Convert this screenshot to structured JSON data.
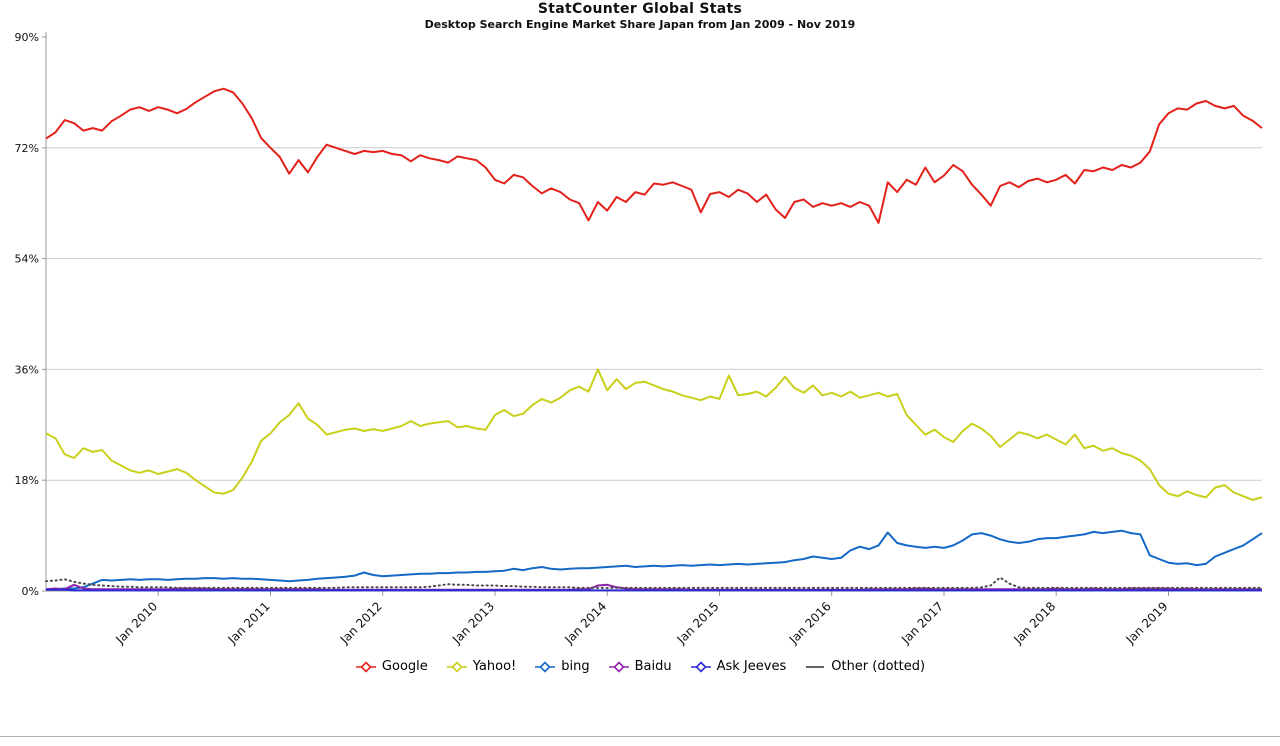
{
  "header": {
    "title": "StatCounter Global Stats",
    "subtitle": "Desktop Search Engine Market Share Japan from Jan 2009 - Nov 2019"
  },
  "style_colors": {
    "grid": "#cccccc",
    "axis": "#999999",
    "tick_text": "#111111",
    "divider": "#b3b3b3"
  },
  "chart_data": {
    "type": "line",
    "title": "StatCounter Global Stats",
    "subtitle": "Desktop Search Engine Market Share Japan from Jan 2009 - Nov 2019",
    "x_unit": "month",
    "x_start": "Jan 2009",
    "x_end": "Nov 2019",
    "n_points": 131,
    "ylim": [
      0,
      90
    ],
    "y_ticks": [
      0,
      18,
      36,
      54,
      72,
      90
    ],
    "y_tick_labels": [
      "0%",
      "18%",
      "36%",
      "54%",
      "72%",
      "90%"
    ],
    "x_tick_indices": [
      12,
      24,
      36,
      48,
      60,
      72,
      84,
      96,
      108,
      120
    ],
    "x_tick_labels": [
      "Jan 2010",
      "Jan 2011",
      "Jan 2012",
      "Jan 2013",
      "Jan 2014",
      "Jan 2015",
      "Jan 2016",
      "Jan 2017",
      "Jan 2018",
      "Jan 2019"
    ],
    "grid": "horizontal",
    "legend_position": "bottom",
    "series": [
      {
        "name": "Google",
        "color": "#e3211b",
        "style": "solid",
        "values": [
          73.5,
          74.5,
          76.5,
          76,
          74.8,
          75.2,
          74.8,
          76.3,
          77.2,
          78.2,
          78.6,
          78,
          78.6,
          78.2,
          77.6,
          78.3,
          79.4,
          80.3,
          81.2,
          81.6,
          81,
          79.2,
          76.8,
          73.6,
          72,
          70.5,
          67.8,
          70,
          68,
          70.5,
          72.5,
          72,
          71.5,
          71,
          71.5,
          71.3,
          71.5,
          71,
          70.8,
          69.8,
          70.8,
          70.3,
          70,
          69.6,
          70.6,
          70.3,
          70,
          68.8,
          66.8,
          66.2,
          67.6,
          67.2,
          65.8,
          64.6,
          65.4,
          64.8,
          63.6,
          63,
          60.2,
          63.2,
          61.8,
          64,
          63.2,
          64.8,
          64.4,
          66.2,
          66,
          66.4,
          65.8,
          65.2,
          61.5,
          64.5,
          64.8,
          64,
          65.2,
          64.6,
          63.2,
          64.4,
          62,
          60.6,
          63.2,
          63.6,
          62.4,
          63,
          62.6,
          63,
          62.4,
          63.2,
          62.6,
          59.8,
          66.4,
          64.8,
          66.8,
          66,
          68.8,
          66.4,
          67.5,
          69.2,
          68.2,
          66,
          64.4,
          62.6,
          65.8,
          66.4,
          65.6,
          66.6,
          67,
          66.4,
          66.8,
          67.6,
          66.2,
          68.4,
          68.2,
          68.8,
          68.4,
          69.2,
          68.8,
          69.6,
          71.4,
          75.8,
          77.6,
          78.4,
          78.2,
          79.2,
          79.6,
          78.8,
          78.4,
          78.8,
          77.2,
          76.4,
          75.2
        ]
      },
      {
        "name": "Yahoo!",
        "color": "#c9cf1b",
        "style": "solid",
        "values": [
          25.6,
          24.8,
          22.2,
          21.6,
          23.2,
          22.6,
          22.9,
          21.2,
          20.4,
          19.6,
          19.2,
          19.6,
          19,
          19.4,
          19.8,
          19.2,
          18,
          17,
          16,
          15.8,
          16.4,
          18.4,
          21,
          24.4,
          25.6,
          27.4,
          28.6,
          30.5,
          28,
          27,
          25.4,
          25.8,
          26.2,
          26.4,
          26,
          26.3,
          26,
          26.4,
          26.8,
          27.6,
          26.8,
          27.2,
          27.4,
          27.6,
          26.6,
          26.8,
          26.4,
          26.2,
          28.6,
          29.4,
          28.4,
          28.8,
          30.2,
          31.2,
          30.6,
          31.4,
          32.6,
          33.2,
          32.4,
          36,
          32.6,
          34.4,
          32.8,
          33.8,
          34,
          33.4,
          32.8,
          32.4,
          31.8,
          31.4,
          31,
          31.6,
          31.2,
          35,
          31.8,
          32,
          32.4,
          31.6,
          33,
          34.8,
          33,
          32.2,
          33.4,
          31.8,
          32.2,
          31.6,
          32.4,
          31.4,
          31.8,
          32.2,
          31.6,
          32,
          28.6,
          27,
          25.4,
          26.2,
          25,
          24.2,
          26,
          27.2,
          26.4,
          25.2,
          23.4,
          24.6,
          25.8,
          25.4,
          24.8,
          25.4,
          24.6,
          23.8,
          25.4,
          23.2,
          23.6,
          22.8,
          23.2,
          22.4,
          22,
          21.2,
          19.8,
          17.2,
          15.8,
          15.4,
          16.2,
          15.6,
          15.2,
          16.8,
          17.2,
          16,
          15.4,
          14.8,
          15.2
        ]
      },
      {
        "name": "bing",
        "color": "#1569c7",
        "style": "solid",
        "values": [
          0.3,
          0.3,
          0.4,
          0.4,
          0.6,
          1.2,
          1.8,
          1.7,
          1.8,
          1.9,
          1.8,
          1.9,
          1.9,
          1.8,
          1.9,
          2,
          2,
          2.1,
          2.1,
          2,
          2.1,
          2,
          2,
          1.9,
          1.8,
          1.7,
          1.6,
          1.7,
          1.8,
          2,
          2.1,
          2.2,
          2.3,
          2.5,
          3,
          2.6,
          2.4,
          2.5,
          2.6,
          2.7,
          2.8,
          2.8,
          2.9,
          2.9,
          3,
          3,
          3.1,
          3.1,
          3.2,
          3.3,
          3.6,
          3.4,
          3.7,
          3.9,
          3.6,
          3.5,
          3.6,
          3.7,
          3.7,
          3.8,
          3.9,
          4,
          4.1,
          3.9,
          4,
          4.1,
          4,
          4.1,
          4.2,
          4.1,
          4.2,
          4.3,
          4.2,
          4.3,
          4.4,
          4.3,
          4.4,
          4.5,
          4.6,
          4.7,
          5,
          5.2,
          5.6,
          5.4,
          5.2,
          5.4,
          6.6,
          7.2,
          6.8,
          7.4,
          9.5,
          7.8,
          7.4,
          7.2,
          7,
          7.2,
          7,
          7.4,
          8.2,
          9.2,
          9.4,
          9,
          8.4,
          8,
          7.8,
          8,
          8.4,
          8.6,
          8.6,
          8.8,
          9,
          9.2,
          9.6,
          9.4,
          9.6,
          9.8,
          9.4,
          9.2,
          5.8,
          5.2,
          4.6,
          4.4,
          4.5,
          4.2,
          4.4,
          5.6,
          6.2,
          6.8,
          7.4,
          8.4,
          9.4
        ]
      },
      {
        "name": "Baidu",
        "color": "#9022a8",
        "style": "solid",
        "values": [
          0.3,
          0.4,
          0.3,
          1,
          0.4,
          0.3,
          0.3,
          0.3,
          0.3,
          0.3,
          0.3,
          0.3,
          0.3,
          0.3,
          0.4,
          0.4,
          0.4,
          0.4,
          0.3,
          0.3,
          0.3,
          0.3,
          0.3,
          0.3,
          0.3,
          0.3,
          0.3,
          0.3,
          0.3,
          0.3,
          0.2,
          0.2,
          0.2,
          0.2,
          0.2,
          0.2,
          0.2,
          0.2,
          0.2,
          0.2,
          0.2,
          0.2,
          0.2,
          0.2,
          0.2,
          0.2,
          0.2,
          0.2,
          0.2,
          0.2,
          0.2,
          0.2,
          0.2,
          0.2,
          0.2,
          0.2,
          0.2,
          0.3,
          0.3,
          0.9,
          1,
          0.6,
          0.4,
          0.3,
          0.3,
          0.3,
          0.3,
          0.3,
          0.3,
          0.2,
          0.2,
          0.2,
          0.2,
          0.2,
          0.2,
          0.2,
          0.2,
          0.2,
          0.2,
          0.2,
          0.2,
          0.2,
          0.2,
          0.2,
          0.2,
          0.2,
          0.2,
          0.2,
          0.3,
          0.3,
          0.3,
          0.3,
          0.3,
          0.4,
          0.4,
          0.3,
          0.3,
          0.3,
          0.3,
          0.3,
          0.3,
          0.3,
          0.3,
          0.3,
          0.3,
          0.3,
          0.3,
          0.3,
          0.4,
          0.3,
          0.3,
          0.3,
          0.4,
          0.3,
          0.3,
          0.3,
          0.4,
          0.4,
          0.4,
          0.4,
          0.4,
          0.3,
          0.4,
          0.3,
          0.3,
          0.3,
          0.3,
          0.3,
          0.3,
          0.3,
          0.3
        ]
      },
      {
        "name": "Ask Jeeves",
        "color": "#2a2ad4",
        "style": "solid",
        "values": [
          0.2,
          0.2,
          0.2,
          0.1,
          0.1,
          0.1,
          0.1,
          0.1,
          0.1,
          0.1,
          0.1,
          0.1,
          0.1,
          0.1,
          0.1,
          0.1,
          0.1,
          0.1,
          0.1,
          0.1,
          0.1,
          0.1,
          0.1,
          0.1,
          0.1,
          0.1,
          0.1,
          0.1,
          0.1,
          0.1,
          0.1,
          0.1,
          0.1,
          0.1,
          0.1,
          0.1,
          0.1,
          0.1,
          0.1,
          0.1,
          0.1,
          0.1,
          0.1,
          0.1,
          0.1,
          0.1,
          0.1,
          0.1,
          0.1,
          0.1,
          0.1,
          0.1,
          0.1,
          0.1,
          0.1,
          0.1,
          0.1,
          0.1,
          0.1,
          0.1,
          0.1,
          0.1,
          0.1,
          0.1,
          0.1,
          0.1,
          0.1,
          0.1,
          0.1,
          0.1,
          0.1,
          0.1,
          0.1,
          0.1,
          0.1,
          0.1,
          0.1,
          0.1,
          0.1,
          0.1,
          0.1,
          0.1,
          0.1,
          0.1,
          0.1,
          0.1,
          0.1,
          0.1,
          0.1,
          0.1,
          0.1,
          0.1,
          0.1,
          0.1,
          0.1,
          0.1,
          0.1,
          0.1,
          0.1,
          0.1,
          0.1,
          0.1,
          0.1,
          0.1,
          0.1,
          0.1,
          0.1,
          0.1,
          0.1,
          0.1,
          0.1,
          0.1,
          0.1,
          0.1,
          0.1,
          0.1,
          0.1,
          0.1,
          0.1,
          0.1,
          0.1,
          0.1,
          0.1,
          0.1,
          0.1,
          0.1,
          0.1,
          0.1,
          0.1,
          0.1,
          0.1
        ]
      },
      {
        "name": "Other (dotted)",
        "color": "#4d4d4d",
        "style": "dotted",
        "values": [
          1.6,
          1.7,
          1.9,
          1.5,
          1.2,
          1,
          0.9,
          0.8,
          0.7,
          0.7,
          0.6,
          0.6,
          0.6,
          0.6,
          0.5,
          0.5,
          0.5,
          0.5,
          0.5,
          0.5,
          0.5,
          0.5,
          0.5,
          0.5,
          0.5,
          0.5,
          0.5,
          0.5,
          0.5,
          0.5,
          0.5,
          0.5,
          0.6,
          0.6,
          0.6,
          0.6,
          0.6,
          0.6,
          0.6,
          0.6,
          0.6,
          0.7,
          0.9,
          1.1,
          1,
          1,
          0.9,
          0.9,
          0.9,
          0.8,
          0.8,
          0.7,
          0.7,
          0.6,
          0.6,
          0.6,
          0.6,
          0.5,
          0.5,
          0.5,
          0.5,
          0.5,
          0.5,
          0.5,
          0.5,
          0.5,
          0.5,
          0.5,
          0.5,
          0.5,
          0.5,
          0.5,
          0.5,
          0.5,
          0.5,
          0.5,
          0.5,
          0.5,
          0.5,
          0.5,
          0.5,
          0.5,
          0.5,
          0.5,
          0.5,
          0.5,
          0.5,
          0.5,
          0.5,
          0.5,
          0.5,
          0.5,
          0.5,
          0.5,
          0.5,
          0.5,
          0.5,
          0.5,
          0.5,
          0.5,
          0.6,
          0.9,
          2.2,
          1.2,
          0.6,
          0.5,
          0.5,
          0.5,
          0.5,
          0.5,
          0.5,
          0.5,
          0.5,
          0.5,
          0.5,
          0.5,
          0.5,
          0.5,
          0.5,
          0.5,
          0.5,
          0.5,
          0.5,
          0.5,
          0.5,
          0.5,
          0.5,
          0.5,
          0.5,
          0.5,
          0.5
        ]
      }
    ]
  }
}
